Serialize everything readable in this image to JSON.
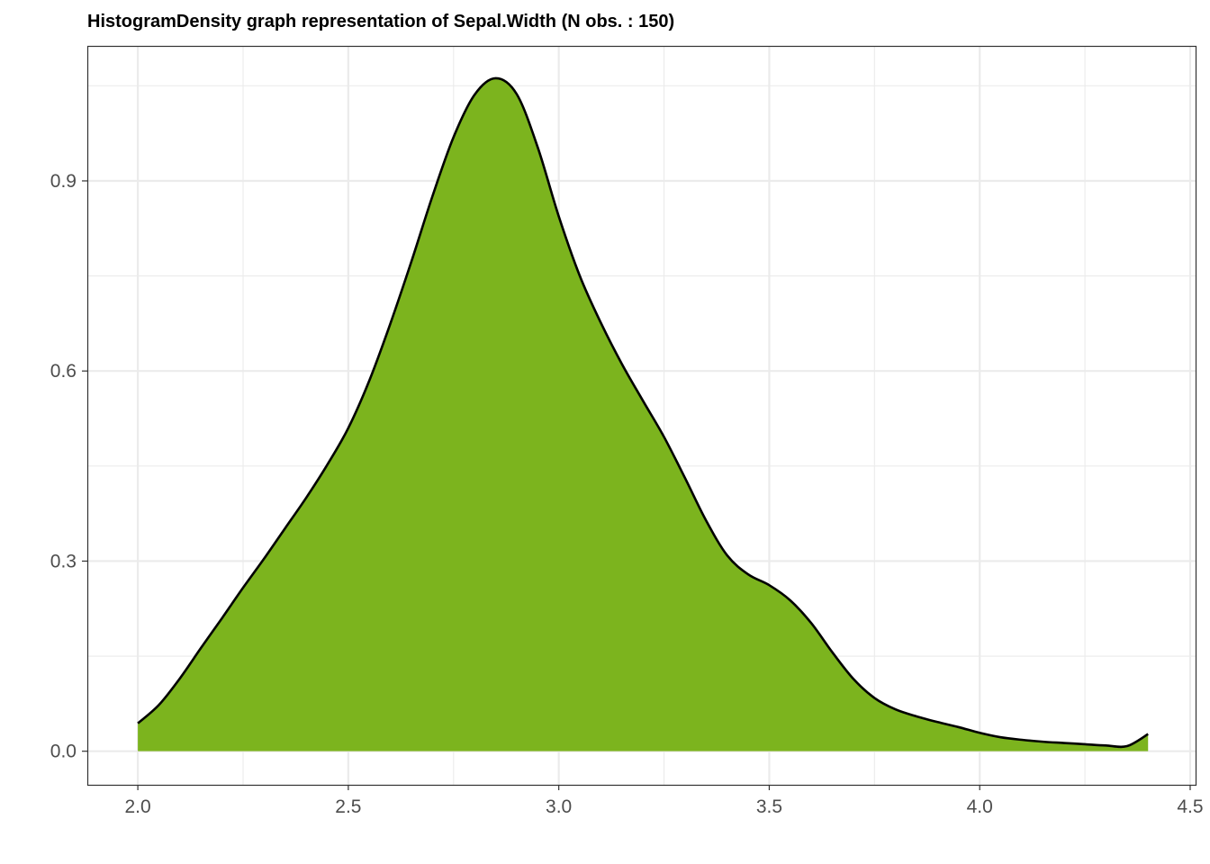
{
  "chart_data": {
    "type": "area",
    "title": "HistogramDensity graph representation of Sepal.Width (N obs. : 150)",
    "xlabel": "",
    "ylabel": "",
    "xlim": [
      1.88,
      4.515
    ],
    "ylim": [
      -0.053,
      1.113
    ],
    "x_ticks": [
      2.0,
      2.5,
      3.0,
      3.5,
      4.0,
      4.5
    ],
    "x_tick_labels": [
      "2.0",
      "2.5",
      "3.0",
      "3.5",
      "4.0",
      "4.5"
    ],
    "y_ticks": [
      0.0,
      0.3,
      0.6,
      0.9
    ],
    "y_tick_labels": [
      "0.0",
      "0.3",
      "0.6",
      "0.9"
    ],
    "x_minor_ticks": [
      2.25,
      2.75,
      3.25,
      3.75,
      4.25
    ],
    "y_minor_ticks": [
      0.15,
      0.45,
      0.75,
      1.05
    ],
    "grid": true,
    "legend": "none",
    "fill_color": "#7CB41E",
    "line_color": "#000000",
    "series": [
      {
        "x": [
          2.0,
          2.05,
          2.1,
          2.15,
          2.2,
          2.25,
          2.3,
          2.35,
          2.4,
          2.45,
          2.5,
          2.55,
          2.6,
          2.65,
          2.7,
          2.75,
          2.8,
          2.85,
          2.9,
          2.95,
          3.0,
          3.05,
          3.1,
          3.15,
          3.2,
          3.25,
          3.3,
          3.35,
          3.4,
          3.45,
          3.5,
          3.55,
          3.6,
          3.65,
          3.7,
          3.75,
          3.8,
          3.85,
          3.9,
          3.95,
          4.0,
          4.05,
          4.1,
          4.15,
          4.2,
          4.25,
          4.3,
          4.35,
          4.4
        ],
        "values": [
          0.044,
          0.073,
          0.115,
          0.163,
          0.21,
          0.258,
          0.304,
          0.352,
          0.4,
          0.452,
          0.51,
          0.585,
          0.675,
          0.773,
          0.876,
          0.969,
          1.036,
          1.062,
          1.037,
          0.953,
          0.844,
          0.75,
          0.676,
          0.611,
          0.553,
          0.496,
          0.431,
          0.364,
          0.309,
          0.279,
          0.262,
          0.238,
          0.202,
          0.156,
          0.114,
          0.084,
          0.066,
          0.055,
          0.046,
          0.038,
          0.029,
          0.022,
          0.018,
          0.015,
          0.013,
          0.011,
          0.009,
          0.008,
          0.027
        ]
      }
    ]
  }
}
